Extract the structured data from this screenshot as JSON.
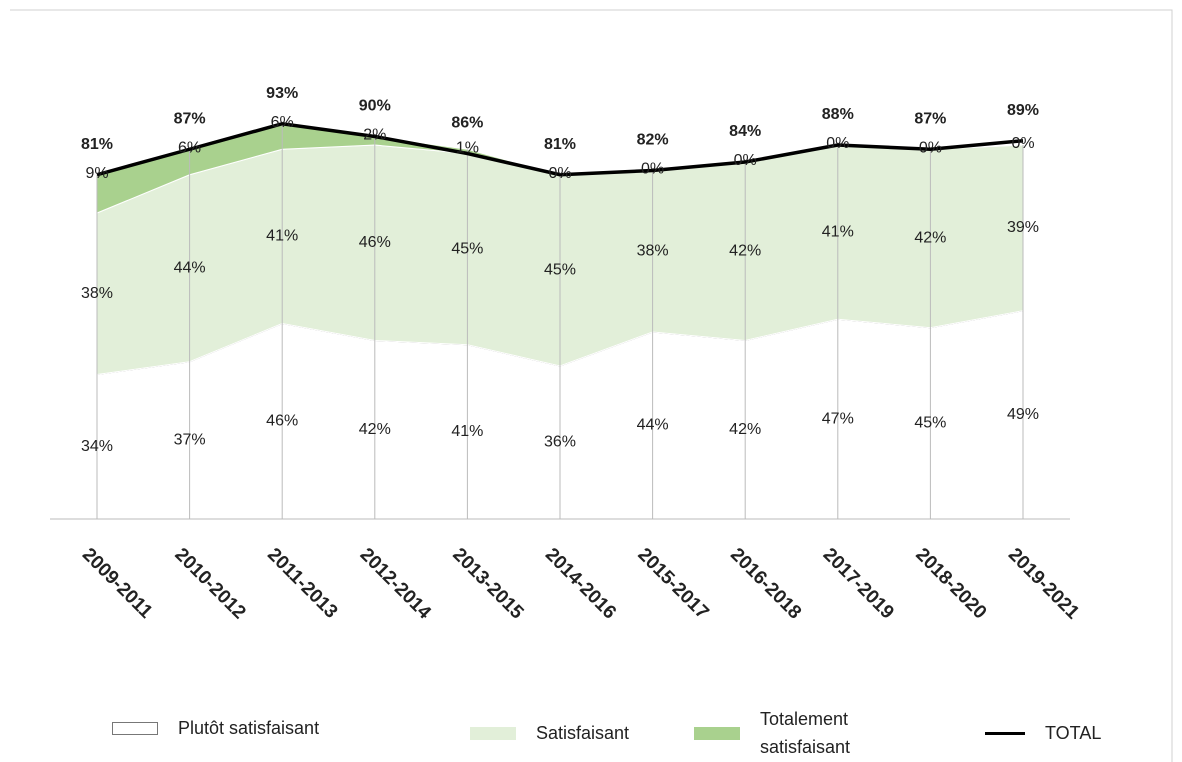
{
  "chart_data": {
    "type": "area",
    "categories": [
      "2009-2011",
      "2010-2012",
      "2011-2013",
      "2012-2014",
      "2013-2015",
      "2014-2016",
      "2015-2017",
      "2016-2018",
      "2017-2019",
      "2018-2020",
      "2019-2021"
    ],
    "series": [
      {
        "name": "Plutôt satisfaisant",
        "type": "area",
        "color": "#ffffff",
        "values": [
          34,
          37,
          46,
          42,
          41,
          36,
          44,
          42,
          47,
          45,
          49
        ],
        "value_labels": [
          "34%",
          "37%",
          "46%",
          "42%",
          "41%",
          "36%",
          "44%",
          "42%",
          "47%",
          "45%",
          "49%"
        ]
      },
      {
        "name": "Satisfaisant",
        "type": "area",
        "color": "#e2efd9",
        "values": [
          38,
          44,
          41,
          46,
          45,
          45,
          38,
          42,
          41,
          42,
          39
        ],
        "value_labels": [
          "38%",
          "44%",
          "41%",
          "46%",
          "45%",
          "45%",
          "38%",
          "42%",
          "41%",
          "42%",
          "39%"
        ]
      },
      {
        "name": "Totalement satisfaisant",
        "type": "area",
        "color": "#a9d18e",
        "values": [
          9,
          6,
          6,
          2,
          1,
          0,
          0,
          0,
          0,
          0,
          0
        ],
        "value_labels": [
          "9%",
          "6%",
          "6%",
          "2%",
          "1%",
          "0%",
          "0%",
          "0%",
          "0%",
          "0%",
          "0%"
        ]
      },
      {
        "name": "TOTAL",
        "type": "line",
        "color": "#000000",
        "values": [
          81,
          87,
          93,
          90,
          86,
          81,
          82,
          84,
          88,
          87,
          89
        ],
        "value_labels": [
          "81%",
          "87%",
          "93%",
          "90%",
          "86%",
          "81%",
          "82%",
          "84%",
          "88%",
          "87%",
          "89%"
        ]
      }
    ]
  }
}
